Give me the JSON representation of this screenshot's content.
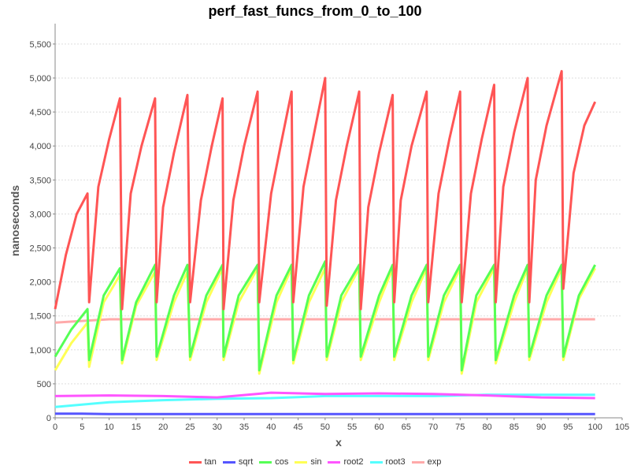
{
  "chart_data": {
    "type": "line",
    "title": "perf_fast_funcs_from_0_to_100",
    "xlabel": "x",
    "ylabel": "nanoseconds",
    "xlim": [
      0,
      105
    ],
    "ylim": [
      0,
      5800
    ],
    "x_ticks": [
      0,
      5,
      10,
      15,
      20,
      25,
      30,
      35,
      40,
      45,
      50,
      55,
      60,
      65,
      70,
      75,
      80,
      85,
      90,
      95,
      100,
      105
    ],
    "y_ticks": [
      0,
      500,
      1000,
      1500,
      2000,
      2500,
      3000,
      3500,
      4000,
      4500,
      5000,
      5500
    ],
    "y_tick_labels": [
      "0",
      "500",
      "1,000",
      "1,500",
      "2,000",
      "2,500",
      "3,000",
      "3,500",
      "4,000",
      "4,500",
      "5,000",
      "5,500"
    ],
    "grid": true,
    "legend_position": "bottom",
    "series": [
      {
        "name": "tan",
        "color": "#ff5555",
        "x": [
          0,
          2,
          4,
          6,
          6.3,
          8,
          10,
          12,
          12.4,
          14,
          16,
          18.5,
          18.8,
          20,
          22,
          24.5,
          25,
          27,
          29,
          31,
          31.2,
          33,
          35,
          37.5,
          37.8,
          40,
          42,
          43.8,
          44.1,
          46,
          48,
          50,
          50.3,
          52,
          54,
          56.3,
          56.6,
          58,
          60,
          62.5,
          62.8,
          64,
          66,
          68.8,
          69.1,
          71,
          73,
          75,
          75.3,
          77,
          79,
          81.3,
          81.6,
          83,
          85,
          87.5,
          87.8,
          89,
          91,
          93.8,
          94.1,
          96,
          98,
          100
        ],
        "values": [
          1600,
          2400,
          3000,
          3300,
          1700,
          3400,
          4100,
          4700,
          1600,
          3300,
          4000,
          4700,
          1700,
          3100,
          3900,
          4750,
          1700,
          3200,
          4000,
          4700,
          1600,
          3200,
          4000,
          4800,
          1700,
          3300,
          4100,
          4800,
          1700,
          3400,
          4200,
          5000,
          1650,
          3200,
          4000,
          4800,
          1600,
          3100,
          3900,
          4750,
          1700,
          3200,
          4000,
          4800,
          1700,
          3300,
          4100,
          4800,
          1700,
          3300,
          4100,
          4900,
          1700,
          3400,
          4200,
          5000,
          1700,
          3500,
          4300,
          5100,
          1900,
          3600,
          4300,
          4650
        ]
      },
      {
        "name": "sqrt",
        "color": "#5555ff",
        "x": [
          0,
          5,
          10,
          15,
          20,
          25,
          30,
          35,
          40,
          45,
          50,
          55,
          60,
          65,
          70,
          75,
          80,
          85,
          90,
          95,
          100
        ],
        "values": [
          60,
          60,
          55,
          55,
          55,
          55,
          55,
          55,
          55,
          55,
          55,
          55,
          55,
          55,
          55,
          55,
          55,
          55,
          55,
          55,
          55
        ]
      },
      {
        "name": "cos",
        "color": "#55ff55",
        "x": [
          0,
          3,
          6,
          6.3,
          9,
          12,
          12.4,
          15,
          18.5,
          18.8,
          22,
          24.5,
          25,
          28,
          31,
          31.2,
          34,
          37.5,
          37.8,
          41,
          43.8,
          44.1,
          47,
          50,
          50.3,
          53,
          56.3,
          56.6,
          60,
          62.5,
          62.8,
          66,
          68.8,
          69.1,
          72,
          75,
          75.3,
          78,
          81.3,
          81.6,
          85,
          87.5,
          87.8,
          91,
          93.8,
          94.1,
          97,
          100
        ],
        "values": [
          900,
          1300,
          1600,
          850,
          1800,
          2200,
          850,
          1700,
          2250,
          900,
          1800,
          2250,
          900,
          1800,
          2250,
          900,
          1800,
          2250,
          700,
          1800,
          2250,
          850,
          1800,
          2300,
          900,
          1800,
          2250,
          900,
          1800,
          2250,
          900,
          1800,
          2250,
          900,
          1800,
          2250,
          700,
          1800,
          2250,
          850,
          1800,
          2250,
          900,
          1800,
          2250,
          900,
          1800,
          2250
        ]
      },
      {
        "name": "sin",
        "color": "#ffff55",
        "x": [
          0,
          3,
          6,
          6.3,
          9,
          12,
          12.4,
          15,
          18.5,
          18.8,
          22,
          24.5,
          25,
          28,
          31,
          31.2,
          34,
          37.5,
          37.8,
          41,
          43.8,
          44.1,
          47,
          50,
          50.3,
          53,
          56.3,
          56.6,
          60,
          62.5,
          62.8,
          66,
          68.8,
          69.1,
          72,
          75,
          75.3,
          78,
          81.3,
          81.6,
          85,
          87.5,
          87.8,
          91,
          93.8,
          94.1,
          97,
          100
        ],
        "values": [
          700,
          1100,
          1400,
          750,
          1700,
          2100,
          800,
          1650,
          2150,
          850,
          1700,
          2150,
          850,
          1700,
          2200,
          850,
          1700,
          2200,
          650,
          1700,
          2200,
          800,
          1700,
          2200,
          850,
          1700,
          2200,
          850,
          1700,
          2200,
          850,
          1700,
          2200,
          850,
          1700,
          2200,
          650,
          1700,
          2200,
          800,
          1700,
          2200,
          850,
          1700,
          2200,
          850,
          1750,
          2200
        ]
      },
      {
        "name": "root2",
        "color": "#ff55ff",
        "x": [
          0,
          10,
          20,
          30,
          40,
          50,
          60,
          70,
          80,
          90,
          100
        ],
        "values": [
          320,
          330,
          320,
          300,
          370,
          350,
          360,
          350,
          330,
          300,
          290
        ]
      },
      {
        "name": "root3",
        "color": "#55ffff",
        "x": [
          0,
          10,
          20,
          30,
          40,
          50,
          60,
          70,
          80,
          90,
          100
        ],
        "values": [
          160,
          230,
          260,
          280,
          290,
          320,
          320,
          320,
          340,
          340,
          340
        ]
      },
      {
        "name": "exp",
        "color": "#ffaaaa",
        "x": [
          0,
          10,
          20,
          30,
          40,
          50,
          60,
          70,
          80,
          90,
          100
        ],
        "values": [
          1400,
          1450,
          1450,
          1450,
          1450,
          1450,
          1450,
          1450,
          1450,
          1450,
          1450
        ]
      }
    ]
  }
}
